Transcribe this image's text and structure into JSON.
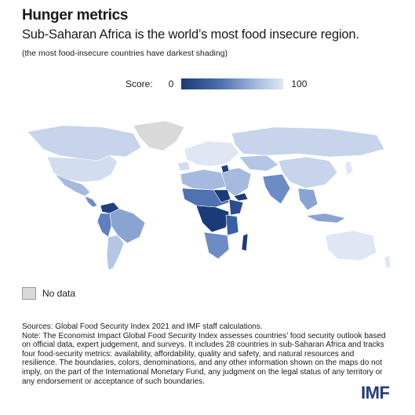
{
  "header": {
    "title": "Hunger metrics",
    "subtitle": "Sub-Saharan Africa is the world’s most food insecure region.",
    "note": "(the most food-insecure countries have darkest shading)"
  },
  "legend": {
    "label": "Score:",
    "min": "0",
    "max": "100",
    "colors": {
      "low": "#1b3a78",
      "mid": "#4f72b0",
      "high": "#dfe7f5"
    }
  },
  "no_data": {
    "label": "No data",
    "color": "#d9d9d9"
  },
  "sources": {
    "line1": "Sources: Global Food Security Index 2021 and IMF staff calculations.",
    "note": "Note: The Economist Impact Global Food Security Index assesses countries’ food security outlook based on official data, expert judgement, and surveys. It includes 28 countries in sub-Saharan Africa and tracks four food-security metrics: availability, affordability, quality and safety, and natural resources and resilience. The boundaries, colors, denominations, and any other information shown on the maps do not imply, on the part of the International Monetary Fund, any judgment on the legal status of any territory or any endorsement or acceptance of such boundaries."
  },
  "logo": "IMF"
}
